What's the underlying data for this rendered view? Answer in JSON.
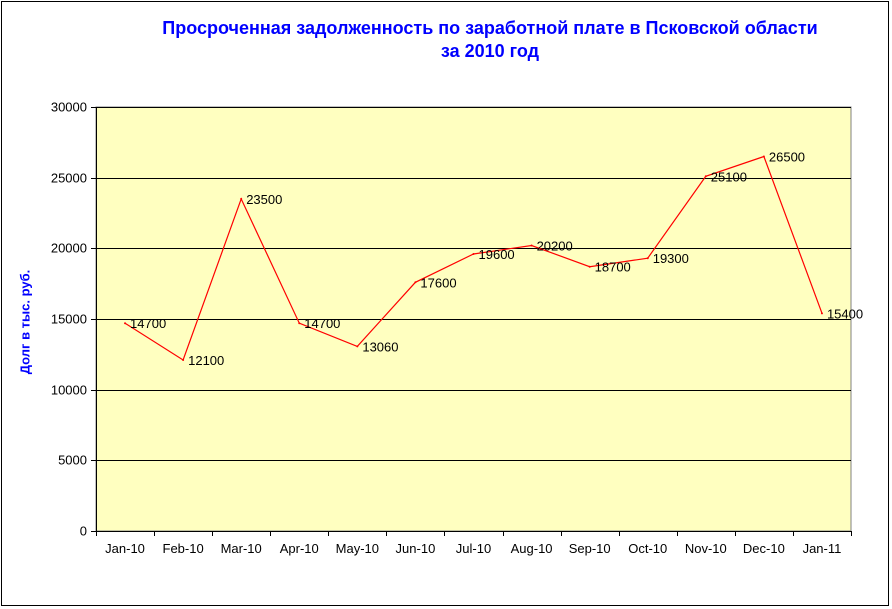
{
  "chart_data": {
    "type": "line",
    "title_line1": "Просроченная задолженность по заработной плате в Псковской области",
    "title_line2": "за 2010 год",
    "xlabel": "",
    "ylabel": "Долг в тыс. руб.",
    "categories": [
      "Jan-10",
      "Feb-10",
      "Mar-10",
      "Apr-10",
      "May-10",
      "Jun-10",
      "Jul-10",
      "Aug-10",
      "Sep-10",
      "Oct-10",
      "Nov-10",
      "Dec-10",
      "Jan-11"
    ],
    "values": [
      14700,
      12100,
      23500,
      14700,
      13060,
      17600,
      19600,
      20200,
      18700,
      19300,
      25100,
      26500,
      15400
    ],
    "data_labels": [
      "14700",
      "12100",
      "23500",
      "14700",
      "13060",
      "17600",
      "19600",
      "20200",
      "18700",
      "19300",
      "25100",
      "26500",
      "15400"
    ],
    "ylim": [
      0,
      30000
    ],
    "yticks": [
      0,
      5000,
      10000,
      15000,
      20000,
      25000,
      30000
    ],
    "ytick_labels": [
      "0",
      "5000",
      "10000",
      "15000",
      "20000",
      "25000",
      "30000"
    ],
    "grid": "horizontal",
    "legend": "none",
    "colors": {
      "plot_background": "#ffffc0",
      "line": "#ff0000",
      "gridline": "#000000",
      "title": "#0000ff",
      "axis_label": "#0000ff"
    }
  }
}
